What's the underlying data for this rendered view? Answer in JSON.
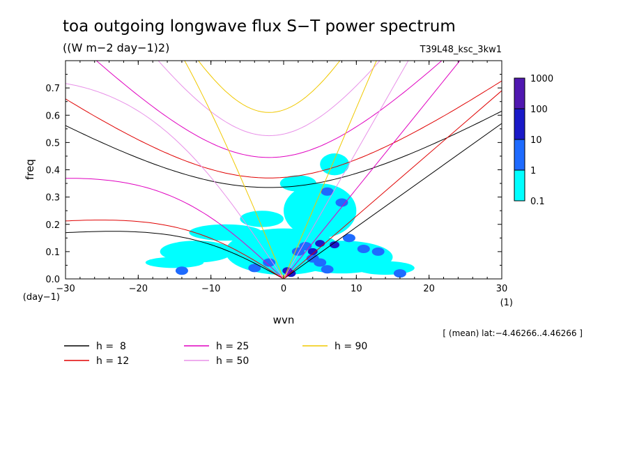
{
  "chart_data": {
    "type": "heatmap",
    "title": "toa outgoing longwave flux S−T power spectrum",
    "subtitle": "((W m−2 day−1)2)",
    "run_label": "T39L48_ksc_3kw1",
    "xlabel": "wvn",
    "ylabel": "freq",
    "x_unit_label": "(1)",
    "y_unit_label": "(day−1)",
    "xlim": [
      -30,
      30
    ],
    "ylim": [
      0,
      0.8
    ],
    "xticks": [
      -30,
      -20,
      -10,
      0,
      10,
      20,
      30
    ],
    "xtick_labels": [
      "−30",
      "−20",
      "−10",
      "0",
      "10",
      "20",
      "30"
    ],
    "yticks": [
      0,
      0.1,
      0.2,
      0.3,
      0.4,
      0.5,
      0.6,
      0.7
    ],
    "ytick_labels": [
      "0.0",
      "0.1",
      "0.2",
      "0.3",
      "0.4",
      "0.5",
      "0.6",
      "0.7"
    ],
    "footer": "[ (mean) lat:−4.46266..4.46266 ]",
    "colorbar": {
      "levels": [
        "0.1",
        "1",
        "10",
        "100",
        "1000"
      ],
      "colors": [
        "#00ffff",
        "#1e6bff",
        "#1a1ac8",
        "#5018b0"
      ]
    },
    "legend": [
      {
        "label": "h =  8",
        "color": "#000000"
      },
      {
        "label": "h = 12",
        "color": "#e00000"
      },
      {
        "label": "h = 25",
        "color": "#e000c0"
      },
      {
        "label": "h = 50",
        "color": "#e890e8"
      },
      {
        "label": "h = 90",
        "color": "#f0c800"
      }
    ],
    "dispersion_curves": [
      {
        "h": 8,
        "color": "#000000",
        "inertia_gravity_min_freq": 0.335,
        "kelvin_freq_at_k30": 0.57
      },
      {
        "h": 12,
        "color": "#e00000",
        "inertia_gravity_min_freq": 0.37,
        "kelvin_freq_at_k30": 0.69
      },
      {
        "h": 25,
        "color": "#e000c0",
        "inertia_gravity_min_freq": 0.445,
        "kelvin_freq_at_k30": 0.99
      },
      {
        "h": 50,
        "color": "#e890e8",
        "inertia_gravity_min_freq": 0.525,
        "kelvin_freq_at_k30": 1.4
      },
      {
        "h": 90,
        "color": "#f0c800",
        "inertia_gravity_min_freq": 0.61,
        "kelvin_freq_at_k30": 1.88
      }
    ],
    "power_blobs": [
      {
        "wvn": 4,
        "freq": 0.075,
        "level": 1
      },
      {
        "wvn": 3,
        "freq": 0.12,
        "level": 1
      },
      {
        "wvn": 5,
        "freq": 0.13,
        "level": 2
      },
      {
        "wvn": 4,
        "freq": 0.1,
        "level": 2
      },
      {
        "wvn": 7,
        "freq": 0.125,
        "level": 2
      },
      {
        "wvn": 2,
        "freq": 0.1,
        "level": 1
      },
      {
        "wvn": 0.5,
        "freq": 0.03,
        "level": 2
      },
      {
        "wvn": 1,
        "freq": 0.02,
        "level": 2
      },
      {
        "wvn": 11,
        "freq": 0.11,
        "level": 1
      },
      {
        "wvn": 9,
        "freq": 0.15,
        "level": 1
      },
      {
        "wvn": 13,
        "freq": 0.1,
        "level": 1
      },
      {
        "wvn": 5,
        "freq": 0.06,
        "level": 1
      },
      {
        "wvn": 6,
        "freq": 0.035,
        "level": 1
      },
      {
        "wvn": -2,
        "freq": 0.06,
        "level": 1
      },
      {
        "wvn": -14,
        "freq": 0.03,
        "level": 1
      },
      {
        "wvn": -4,
        "freq": 0.04,
        "level": 1
      },
      {
        "wvn": 16,
        "freq": 0.02,
        "level": 1
      },
      {
        "wvn": 6,
        "freq": 0.32,
        "level": 1
      },
      {
        "wvn": 8,
        "freq": 0.28,
        "level": 1
      }
    ],
    "power_regions": [
      {
        "wvn": 0,
        "freq": 0.1,
        "width_wvn": 16,
        "height_freq": 0.17,
        "level": 0
      },
      {
        "wvn": 8,
        "freq": 0.08,
        "width_wvn": 14,
        "height_freq": 0.12,
        "level": 0
      },
      {
        "wvn": 5,
        "freq": 0.25,
        "width_wvn": 10,
        "height_freq": 0.2,
        "level": 0
      },
      {
        "wvn": -12,
        "freq": 0.1,
        "width_wvn": 10,
        "height_freq": 0.08,
        "level": 0
      },
      {
        "wvn": -8,
        "freq": 0.17,
        "width_wvn": 10,
        "height_freq": 0.06,
        "level": 0
      },
      {
        "wvn": 14,
        "freq": 0.04,
        "width_wvn": 8,
        "height_freq": 0.05,
        "level": 0
      },
      {
        "wvn": -15,
        "freq": 0.06,
        "width_wvn": 8,
        "height_freq": 0.04,
        "level": 0
      },
      {
        "wvn": 7,
        "freq": 0.42,
        "width_wvn": 4,
        "height_freq": 0.08,
        "level": 0
      },
      {
        "wvn": -3,
        "freq": 0.22,
        "width_wvn": 6,
        "height_freq": 0.06,
        "level": 0
      },
      {
        "wvn": 2,
        "freq": 0.35,
        "width_wvn": 5,
        "height_freq": 0.06,
        "level": 0
      }
    ]
  }
}
